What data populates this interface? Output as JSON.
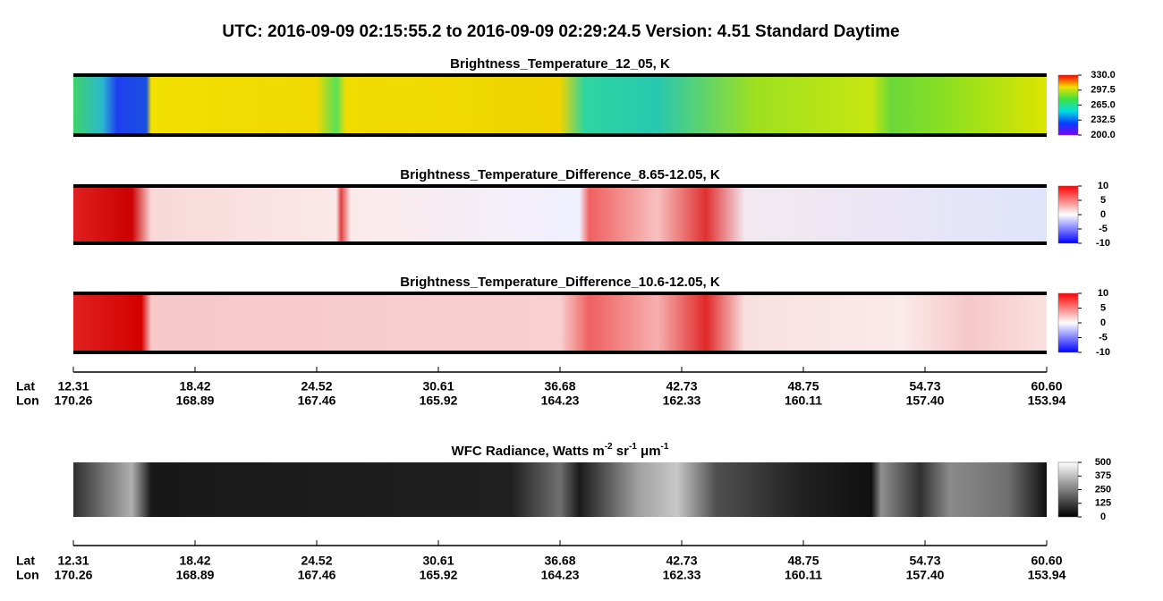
{
  "title": "UTC:  2016-09-09   02:15:55.2  to  2016-09-09   02:29:24.5    Version: 4.51  Standard Daytime",
  "panels": [
    {
      "title": "Brightness_Temperature_12_05, K",
      "clim": [
        200,
        330
      ],
      "cticks": [
        {
          "value": 200,
          "label": "200.0"
        },
        {
          "value": 232.5,
          "label": "232.5"
        },
        {
          "value": 265,
          "label": "265.0"
        },
        {
          "value": 297.5,
          "label": "297.5"
        },
        {
          "value": 330,
          "label": "330.0"
        }
      ]
    },
    {
      "title": "Brightness_Temperature_Difference_8.65-12.05, K",
      "clim": [
        -10,
        10
      ],
      "cticks": [
        -10,
        -5,
        0,
        5,
        10
      ]
    },
    {
      "title": "Brightness_Temperature_Difference_10.6-12.05, K",
      "clim": [
        -10,
        10
      ],
      "cticks": [
        -10,
        -5,
        0,
        5,
        10
      ]
    },
    {
      "title_parts": [
        "WFC Radiance, Watts m",
        "-2",
        " sr",
        "-1",
        " μm",
        "-1"
      ],
      "clim": [
        0,
        500
      ],
      "cticks": [
        0,
        125,
        250,
        375,
        500
      ]
    }
  ],
  "axis": {
    "lat_label": "Lat",
    "lon_label": "Lon",
    "lat": [
      12.31,
      18.42,
      24.52,
      30.61,
      36.68,
      42.73,
      48.75,
      54.73,
      {
        "value": 60.6,
        "label": "60.60"
      }
    ],
    "lon": [
      170.26,
      168.89,
      167.46,
      165.92,
      164.23,
      162.33,
      160.11,
      {
        "value": 157.4,
        "label": "157.40"
      },
      153.94
    ]
  }
}
